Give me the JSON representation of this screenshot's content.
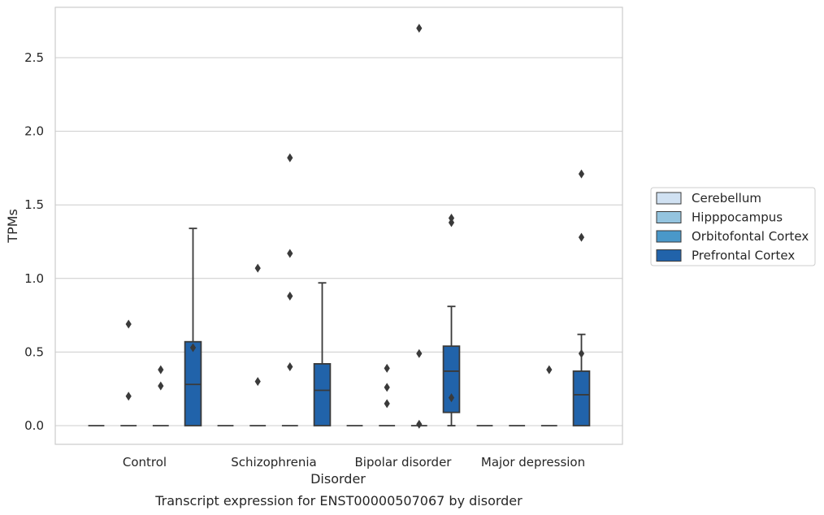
{
  "chart_data": {
    "type": "box",
    "title": "",
    "caption": "Transcript expression for ENST00000507067 by disorder",
    "xlabel": "Disorder",
    "ylabel": "TPMs",
    "ylim": [
      -0.13,
      2.85
    ],
    "yticks": [
      0.0,
      0.5,
      1.0,
      1.5,
      2.0,
      2.5
    ],
    "ytick_labels": [
      "0.0",
      "0.5",
      "1.0",
      "1.5",
      "2.0",
      "2.5"
    ],
    "categories": [
      "Control",
      "Schizophrenia",
      "Bipolar disorder",
      "Major depression"
    ],
    "grid": "horizontal",
    "legend_position": "right",
    "series": [
      {
        "name": "Cerebellum",
        "color": "#d0e1f2",
        "boxes": [
          {
            "q1": 0,
            "median": 0,
            "q3": 0,
            "whisker_low": 0,
            "whisker_high": 0,
            "outliers": []
          },
          {
            "q1": 0,
            "median": 0,
            "q3": 0,
            "whisker_low": 0,
            "whisker_high": 0,
            "outliers": []
          },
          {
            "q1": 0,
            "median": 0,
            "q3": 0,
            "whisker_low": 0,
            "whisker_high": 0,
            "outliers": []
          },
          {
            "q1": 0,
            "median": 0,
            "q3": 0,
            "whisker_low": 0,
            "whisker_high": 0,
            "outliers": []
          }
        ]
      },
      {
        "name": "Hipppocampus",
        "color": "#94c4df",
        "boxes": [
          {
            "q1": 0,
            "median": 0,
            "q3": 0,
            "whisker_low": 0,
            "whisker_high": 0,
            "outliers": [
              0.2,
              0.69
            ]
          },
          {
            "q1": 0,
            "median": 0,
            "q3": 0,
            "whisker_low": 0,
            "whisker_high": 0,
            "outliers": [
              0.3,
              1.07
            ]
          },
          {
            "q1": 0,
            "median": 0,
            "q3": 0,
            "whisker_low": 0,
            "whisker_high": 0,
            "outliers": [
              0.15,
              0.26,
              0.39
            ]
          },
          {
            "q1": 0,
            "median": 0,
            "q3": 0,
            "whisker_low": 0,
            "whisker_high": 0,
            "outliers": []
          }
        ]
      },
      {
        "name": "Orbitofontal Cortex",
        "color": "#4a98c9",
        "boxes": [
          {
            "q1": 0,
            "median": 0,
            "q3": 0,
            "whisker_low": 0,
            "whisker_high": 0,
            "outliers": [
              0.27,
              0.38
            ]
          },
          {
            "q1": 0,
            "median": 0,
            "q3": 0,
            "whisker_low": 0,
            "whisker_high": 0,
            "outliers": [
              0.4,
              0.88,
              1.17,
              1.82
            ]
          },
          {
            "q1": 0,
            "median": 0,
            "q3": 0,
            "whisker_low": 0,
            "whisker_high": 0,
            "outliers": [
              0.01,
              0.49,
              2.7
            ]
          },
          {
            "q1": 0,
            "median": 0,
            "q3": 0,
            "whisker_low": 0,
            "whisker_high": 0,
            "outliers": [
              0.38
            ]
          }
        ]
      },
      {
        "name": "Prefrontal Cortex",
        "color": "#2163aa",
        "boxes": [
          {
            "q1": 0.0,
            "median": 0.28,
            "q3": 0.57,
            "whisker_low": 0.0,
            "whisker_high": 1.34,
            "outliers": [
              0.53
            ]
          },
          {
            "q1": 0.0,
            "median": 0.24,
            "q3": 0.42,
            "whisker_low": 0.0,
            "whisker_high": 0.97,
            "outliers": []
          },
          {
            "q1": 0.09,
            "median": 0.37,
            "q3": 0.54,
            "whisker_low": 0.0,
            "whisker_high": 0.81,
            "outliers": [
              0.19,
              1.38,
              1.41
            ]
          },
          {
            "q1": 0.0,
            "median": 0.21,
            "q3": 0.37,
            "whisker_low": 0.0,
            "whisker_high": 0.62,
            "outliers": [
              0.49,
              1.28,
              1.71
            ]
          }
        ]
      }
    ]
  }
}
